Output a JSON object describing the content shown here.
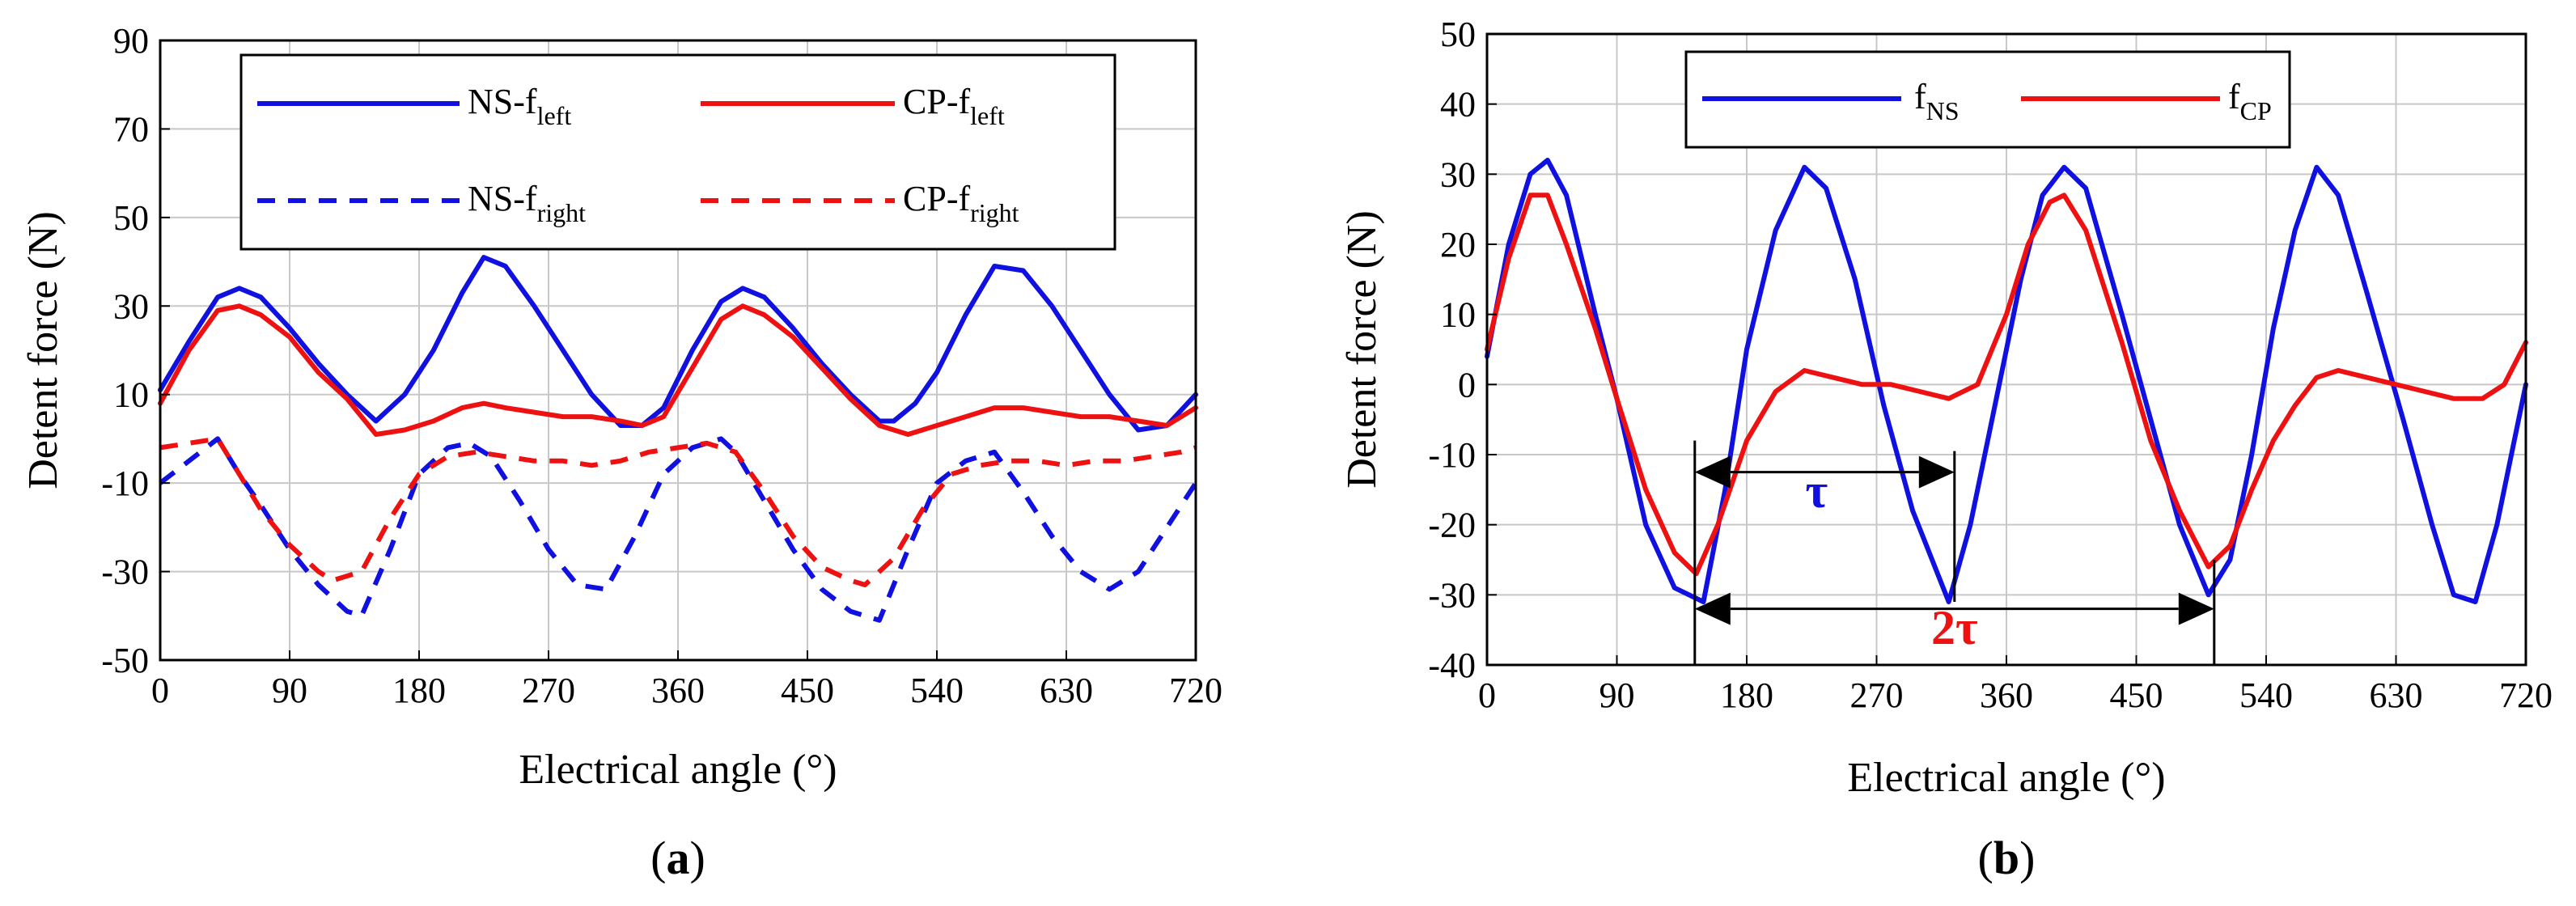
{
  "chart_data": [
    {
      "type": "line",
      "panel_label": "(a)",
      "panel_letter": "a",
      "xlabel": "Electrical angle (°)",
      "ylabel": "Detent force (N)",
      "xlim": [
        0,
        720
      ],
      "ylim": [
        -50,
        90
      ],
      "xticks": [
        0,
        90,
        180,
        270,
        360,
        450,
        540,
        630,
        720
      ],
      "yticks": [
        -50,
        -30,
        -10,
        10,
        30,
        50,
        70,
        90
      ],
      "grid": true,
      "legend_position": "top",
      "series": [
        {
          "name": "NS-f",
          "sub": "left",
          "color": "#1010e0",
          "dash": "solid",
          "x": [
            0,
            20,
            40,
            55,
            70,
            90,
            110,
            130,
            150,
            170,
            190,
            210,
            225,
            240,
            260,
            280,
            300,
            320,
            335,
            350,
            370,
            390,
            405,
            420,
            440,
            460,
            480,
            500,
            510,
            525,
            540,
            560,
            580,
            600,
            620,
            640,
            660,
            680,
            700,
            720
          ],
          "y": [
            11,
            22,
            32,
            34,
            32,
            25,
            17,
            10,
            4,
            10,
            20,
            33,
            41,
            39,
            30,
            20,
            10,
            3,
            3,
            7,
            20,
            31,
            34,
            32,
            25,
            17,
            10,
            4,
            4,
            8,
            15,
            28,
            39,
            38,
            30,
            20,
            10,
            2,
            3,
            10
          ]
        },
        {
          "name": "CP-f",
          "sub": "left",
          "color": "#ee1111",
          "dash": "solid",
          "x": [
            0,
            20,
            40,
            55,
            70,
            90,
            110,
            130,
            150,
            170,
            190,
            210,
            225,
            240,
            260,
            280,
            300,
            320,
            335,
            350,
            370,
            390,
            405,
            420,
            440,
            460,
            480,
            500,
            520,
            540,
            560,
            580,
            600,
            620,
            640,
            660,
            680,
            700,
            720
          ],
          "y": [
            8,
            20,
            29,
            30,
            28,
            23,
            15,
            9,
            1,
            2,
            4,
            7,
            8,
            7,
            6,
            5,
            5,
            4,
            3,
            5,
            16,
            27,
            30,
            28,
            23,
            16,
            9,
            3,
            1,
            3,
            5,
            7,
            7,
            6,
            5,
            5,
            4,
            3,
            7
          ]
        },
        {
          "name": "NS-f",
          "sub": "right",
          "color": "#1010e0",
          "dash": "dashed",
          "x": [
            0,
            20,
            40,
            55,
            70,
            90,
            110,
            130,
            140,
            160,
            180,
            200,
            215,
            230,
            250,
            270,
            290,
            310,
            330,
            350,
            370,
            390,
            400,
            420,
            440,
            460,
            480,
            500,
            520,
            540,
            560,
            580,
            600,
            620,
            640,
            660,
            680,
            700,
            720
          ],
          "y": [
            -10,
            -5,
            0,
            -8,
            -15,
            -25,
            -33,
            -39,
            -40,
            -25,
            -8,
            -2,
            -1,
            -4,
            -14,
            -25,
            -33,
            -34,
            -22,
            -8,
            -2,
            0,
            -3,
            -14,
            -25,
            -34,
            -39,
            -41,
            -25,
            -10,
            -5,
            -3,
            -12,
            -22,
            -30,
            -34,
            -30,
            -20,
            -10
          ]
        },
        {
          "name": "CP-f",
          "sub": "right",
          "color": "#ee1111",
          "dash": "dashed",
          "x": [
            0,
            20,
            40,
            55,
            70,
            90,
            110,
            120,
            140,
            160,
            180,
            200,
            220,
            240,
            260,
            280,
            300,
            320,
            340,
            360,
            380,
            400,
            420,
            440,
            460,
            480,
            490,
            510,
            530,
            550,
            570,
            590,
            610,
            630,
            650,
            670,
            690,
            710,
            720
          ],
          "y": [
            -2,
            -1,
            0,
            -8,
            -16,
            -24,
            -30,
            -32,
            -30,
            -18,
            -8,
            -4,
            -3,
            -4,
            -5,
            -5,
            -6,
            -5,
            -3,
            -2,
            -1,
            -3,
            -12,
            -22,
            -29,
            -32,
            -33,
            -27,
            -16,
            -8,
            -6,
            -5,
            -5,
            -6,
            -5,
            -5,
            -4,
            -3,
            -2
          ]
        }
      ]
    },
    {
      "type": "line",
      "panel_label": "(b)",
      "panel_letter": "b",
      "xlabel": "Electrical angle (°)",
      "ylabel": "Detent force (N)",
      "xlim": [
        0,
        720
      ],
      "ylim": [
        -40,
        50
      ],
      "xticks": [
        0,
        90,
        180,
        270,
        360,
        450,
        540,
        630,
        720
      ],
      "yticks": [
        -40,
        -30,
        -20,
        -10,
        0,
        10,
        20,
        30,
        40,
        50
      ],
      "grid": true,
      "legend_position": "top",
      "series": [
        {
          "name": "f",
          "sub": "NS",
          "color": "#1010e0",
          "dash": "solid",
          "x": [
            0,
            15,
            30,
            42,
            55,
            75,
            90,
            110,
            130,
            150,
            165,
            180,
            200,
            220,
            235,
            255,
            275,
            295,
            320,
            335,
            350,
            370,
            385,
            400,
            415,
            440,
            460,
            480,
            500,
            515,
            530,
            545,
            560,
            575,
            590,
            610,
            635,
            655,
            670,
            685,
            700,
            720
          ],
          "y": [
            4,
            20,
            30,
            32,
            27,
            10,
            -2,
            -20,
            -29,
            -31,
            -15,
            5,
            22,
            31,
            28,
            15,
            -3,
            -18,
            -31,
            -20,
            -5,
            15,
            27,
            31,
            28,
            10,
            -5,
            -20,
            -30,
            -25,
            -10,
            8,
            22,
            31,
            27,
            13,
            -5,
            -20,
            -30,
            -31,
            -20,
            0
          ]
        },
        {
          "name": "f",
          "sub": "CP",
          "color": "#ee1111",
          "dash": "solid",
          "x": [
            0,
            15,
            30,
            42,
            55,
            75,
            90,
            110,
            130,
            145,
            160,
            180,
            200,
            220,
            240,
            260,
            280,
            300,
            320,
            340,
            360,
            375,
            390,
            400,
            415,
            440,
            460,
            480,
            500,
            515,
            530,
            545,
            560,
            575,
            590,
            610,
            630,
            650,
            670,
            690,
            705,
            720
          ],
          "y": [
            5,
            18,
            27,
            27,
            20,
            8,
            -2,
            -15,
            -24,
            -27,
            -20,
            -8,
            -1,
            2,
            1,
            0,
            0,
            -1,
            -2,
            0,
            10,
            20,
            26,
            27,
            22,
            6,
            -8,
            -18,
            -26,
            -23,
            -15,
            -8,
            -3,
            1,
            2,
            1,
            0,
            -1,
            -2,
            -2,
            0,
            6
          ]
        }
      ],
      "annotations": {
        "tau": "τ",
        "two_tau": "2τ",
        "tau_span": [
          144,
          324
        ],
        "two_tau_span": [
          144,
          504
        ]
      }
    }
  ]
}
